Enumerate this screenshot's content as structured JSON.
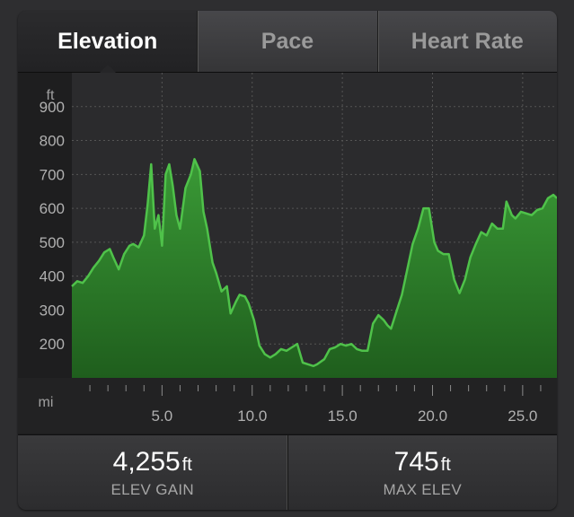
{
  "tabs": [
    {
      "label": "Elevation",
      "active": true
    },
    {
      "label": "Pace",
      "active": false
    },
    {
      "label": "Heart Rate",
      "active": false
    }
  ],
  "chart_data": {
    "type": "area",
    "y_unit": "ft",
    "x_unit": "mi",
    "y_ticks": [
      200,
      300,
      400,
      500,
      600,
      700,
      800,
      900
    ],
    "x_ticks": [
      "5.0",
      "10.0",
      "15.0",
      "20.0",
      "25.0"
    ],
    "ylim": [
      100,
      1000
    ],
    "xlim": [
      0,
      26.9
    ],
    "grid": true,
    "line_color": "#4fc24a",
    "fill_color": "#2f8a2c",
    "x": [
      0.0,
      0.3,
      0.6,
      0.9,
      1.2,
      1.5,
      1.8,
      2.1,
      2.3,
      2.6,
      2.9,
      3.2,
      3.4,
      3.7,
      4.0,
      4.2,
      4.4,
      4.6,
      4.8,
      5.0,
      5.2,
      5.4,
      5.6,
      5.8,
      6.0,
      6.3,
      6.6,
      6.8,
      7.1,
      7.3,
      7.5,
      7.8,
      8.0,
      8.3,
      8.6,
      8.8,
      9.1,
      9.3,
      9.6,
      9.8,
      10.1,
      10.4,
      10.7,
      11.0,
      11.3,
      11.6,
      11.9,
      12.2,
      12.5,
      12.8,
      13.1,
      13.4,
      13.6,
      14.0,
      14.3,
      14.6,
      14.9,
      15.2,
      15.5,
      15.8,
      16.1,
      16.4,
      16.7,
      17.0,
      17.3,
      17.5,
      17.7,
      18.0,
      18.3,
      18.6,
      18.9,
      19.2,
      19.5,
      19.8,
      20.1,
      20.3,
      20.6,
      20.9,
      21.2,
      21.5,
      21.8,
      22.1,
      22.4,
      22.7,
      23.0,
      23.3,
      23.6,
      23.9,
      24.1,
      24.4,
      24.6,
      24.9,
      25.2,
      25.5,
      25.8,
      26.1,
      26.4,
      26.7,
      26.9
    ],
    "y": [
      370,
      385,
      380,
      400,
      425,
      445,
      470,
      480,
      455,
      420,
      465,
      490,
      495,
      485,
      520,
      610,
      730,
      540,
      580,
      490,
      700,
      730,
      665,
      580,
      540,
      660,
      700,
      745,
      710,
      590,
      540,
      440,
      410,
      355,
      370,
      290,
      325,
      345,
      340,
      320,
      270,
      195,
      170,
      160,
      170,
      185,
      180,
      190,
      200,
      145,
      140,
      135,
      140,
      155,
      185,
      190,
      200,
      195,
      200,
      185,
      180,
      180,
      260,
      285,
      270,
      255,
      245,
      295,
      345,
      420,
      495,
      540,
      600,
      600,
      500,
      475,
      465,
      465,
      390,
      350,
      390,
      455,
      495,
      530,
      520,
      555,
      540,
      540,
      620,
      580,
      570,
      590,
      585,
      580,
      595,
      600,
      630,
      640,
      630
    ]
  },
  "stats": [
    {
      "value": "4,255",
      "unit": "ft",
      "label": "ELEV GAIN"
    },
    {
      "value": "745",
      "unit": "ft",
      "label": "MAX ELEV"
    }
  ]
}
